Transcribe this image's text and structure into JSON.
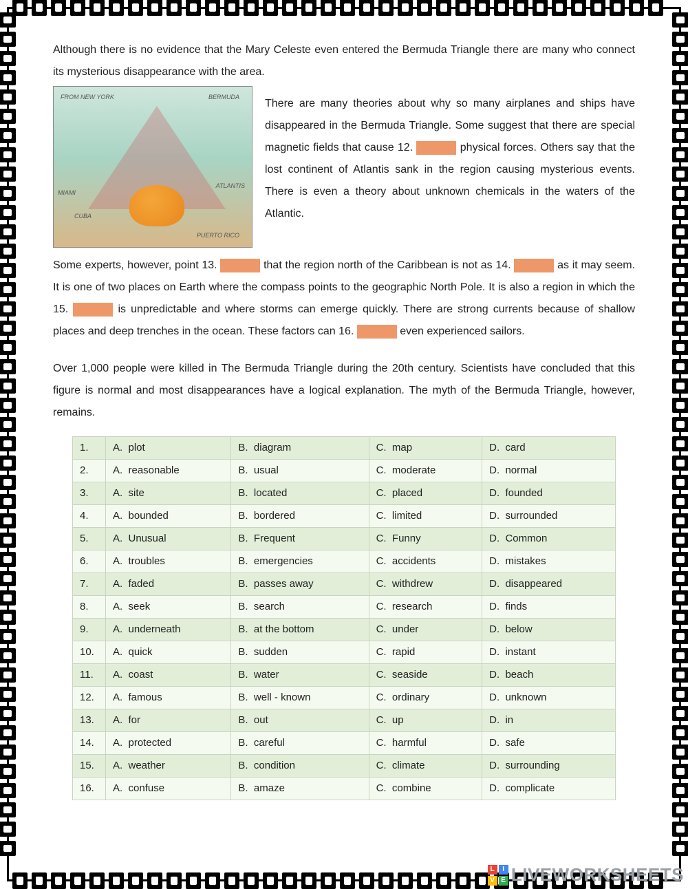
{
  "text": {
    "p1a": "Although there is no evidence that the Mary Celeste even entered the Bermuda Triangle there are many who connect its mysterious disappearance with the area.",
    "p2": "There are many theories about why so many airplanes and ships have disappeared in the Bermuda Triangle. Some suggest that there are special magnetic fields that cause 12. ",
    "p2b": " physical forces. Others say that the lost continent of Atlantis sank in the region causing mysterious events. There is even a theory about unknown chemicals in the waters of the Atlantic.",
    "p3a": "Some experts, however, point 13. ",
    "p3b": " that the region north of the Caribbean is not as 14. ",
    "p3c": " as it may seem. It is one of two places on Earth where the compass points to the geographic North Pole. It is also a region in which the 15. ",
    "p3d": " is unpredictable and where storms can emerge quickly. There are strong currents because of shallow places and deep trenches in the ocean. These factors can 16. ",
    "p3e": " even experienced sailors.",
    "p4": "Over 1,000 people were killed in The Bermuda Triangle during the 20th century. Scientists have concluded that this figure is normal and most disappearances have a logical explanation. The myth of the Bermuda Triangle, however, remains."
  },
  "map": {
    "labels": {
      "bermuda": "BERMUDA",
      "miami": "MIAMI",
      "cuba": "CUBA",
      "atlantis": "ATLANTIS",
      "puertorico": "PUERTO RICO",
      "ny": "FROM NEW YORK"
    }
  },
  "answers": {
    "rows": [
      {
        "n": "1.",
        "a": "plot",
        "b": "diagram",
        "c": "map",
        "d": "card"
      },
      {
        "n": "2.",
        "a": "reasonable",
        "b": "usual",
        "c": "moderate",
        "d": "normal"
      },
      {
        "n": "3.",
        "a": "site",
        "b": "located",
        "c": "placed",
        "d": "founded"
      },
      {
        "n": "4.",
        "a": "bounded",
        "b": "bordered",
        "c": "limited",
        "d": "surrounded"
      },
      {
        "n": "5.",
        "a": "Unusual",
        "b": "Frequent",
        "c": "Funny",
        "d": "Common"
      },
      {
        "n": "6.",
        "a": "troubles",
        "b": "emergencies",
        "c": "accidents",
        "d": "mistakes"
      },
      {
        "n": "7.",
        "a": "faded",
        "b": "passes away",
        "c": "withdrew",
        "d": "disappeared"
      },
      {
        "n": "8.",
        "a": "seek",
        "b": "search",
        "c": "research",
        "d": "finds"
      },
      {
        "n": "9.",
        "a": "underneath",
        "b": "at the bottom",
        "c": "under",
        "d": "below"
      },
      {
        "n": "10.",
        "a": "quick",
        "b": "sudden",
        "c": "rapid",
        "d": "instant"
      },
      {
        "n": "11.",
        "a": "coast",
        "b": "water",
        "c": "seaside",
        "d": "beach"
      },
      {
        "n": "12.",
        "a": "famous",
        "b": "well - known",
        "c": "ordinary",
        "d": "unknown"
      },
      {
        "n": "13.",
        "a": "for",
        "b": "out",
        "c": "up",
        "d": "in"
      },
      {
        "n": "14.",
        "a": "protected",
        "b": "careful",
        "c": "harmful",
        "d": "safe"
      },
      {
        "n": "15.",
        "a": "weather",
        "b": "condition",
        "c": "climate",
        "d": "surrounding"
      },
      {
        "n": "16.",
        "a": "confuse",
        "b": "amaze",
        "c": "combine",
        "d": "complicate"
      }
    ],
    "prefixes": {
      "a": "A.",
      "b": "B.",
      "c": "C.",
      "d": "D."
    }
  },
  "colors": {
    "blank_bg": "#ee986a",
    "row_odd": "#e2eed8",
    "row_even": "#f5faf0",
    "border": "#c8d4c2"
  },
  "watermark": {
    "text": "LIVEWORKSHEETS",
    "squares": [
      {
        "bg": "#e94335",
        "t": "L"
      },
      {
        "bg": "#4285f4",
        "t": "I"
      },
      {
        "bg": "#fbbc05",
        "t": "V"
      },
      {
        "bg": "#34a853",
        "t": "E"
      }
    ]
  }
}
